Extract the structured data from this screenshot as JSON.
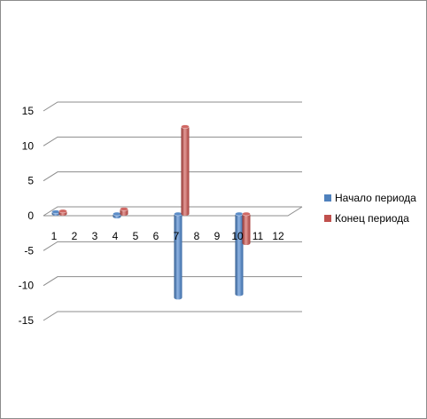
{
  "chart_data": {
    "type": "bar",
    "style": "3d-cylinder",
    "categories": [
      "1",
      "2",
      "3",
      "4",
      "5",
      "6",
      "7",
      "8",
      "9",
      "10",
      "11",
      "12"
    ],
    "series": [
      {
        "name": "Начало периода",
        "color": "#4f81bd",
        "values": [
          0.3,
          null,
          null,
          -0.4,
          null,
          null,
          -12,
          null,
          null,
          -11.5,
          null,
          null
        ]
      },
      {
        "name": "Конец периода",
        "color": "#c0504d",
        "values": [
          0.4,
          null,
          null,
          0.7,
          null,
          null,
          12.5,
          null,
          null,
          -4.2,
          null,
          null
        ]
      }
    ],
    "ylim": [
      -15,
      15
    ],
    "yticks": [
      "15",
      "10",
      "5",
      "0",
      "-5",
      "-10",
      "-15"
    ],
    "grid": true,
    "legend": "right"
  }
}
